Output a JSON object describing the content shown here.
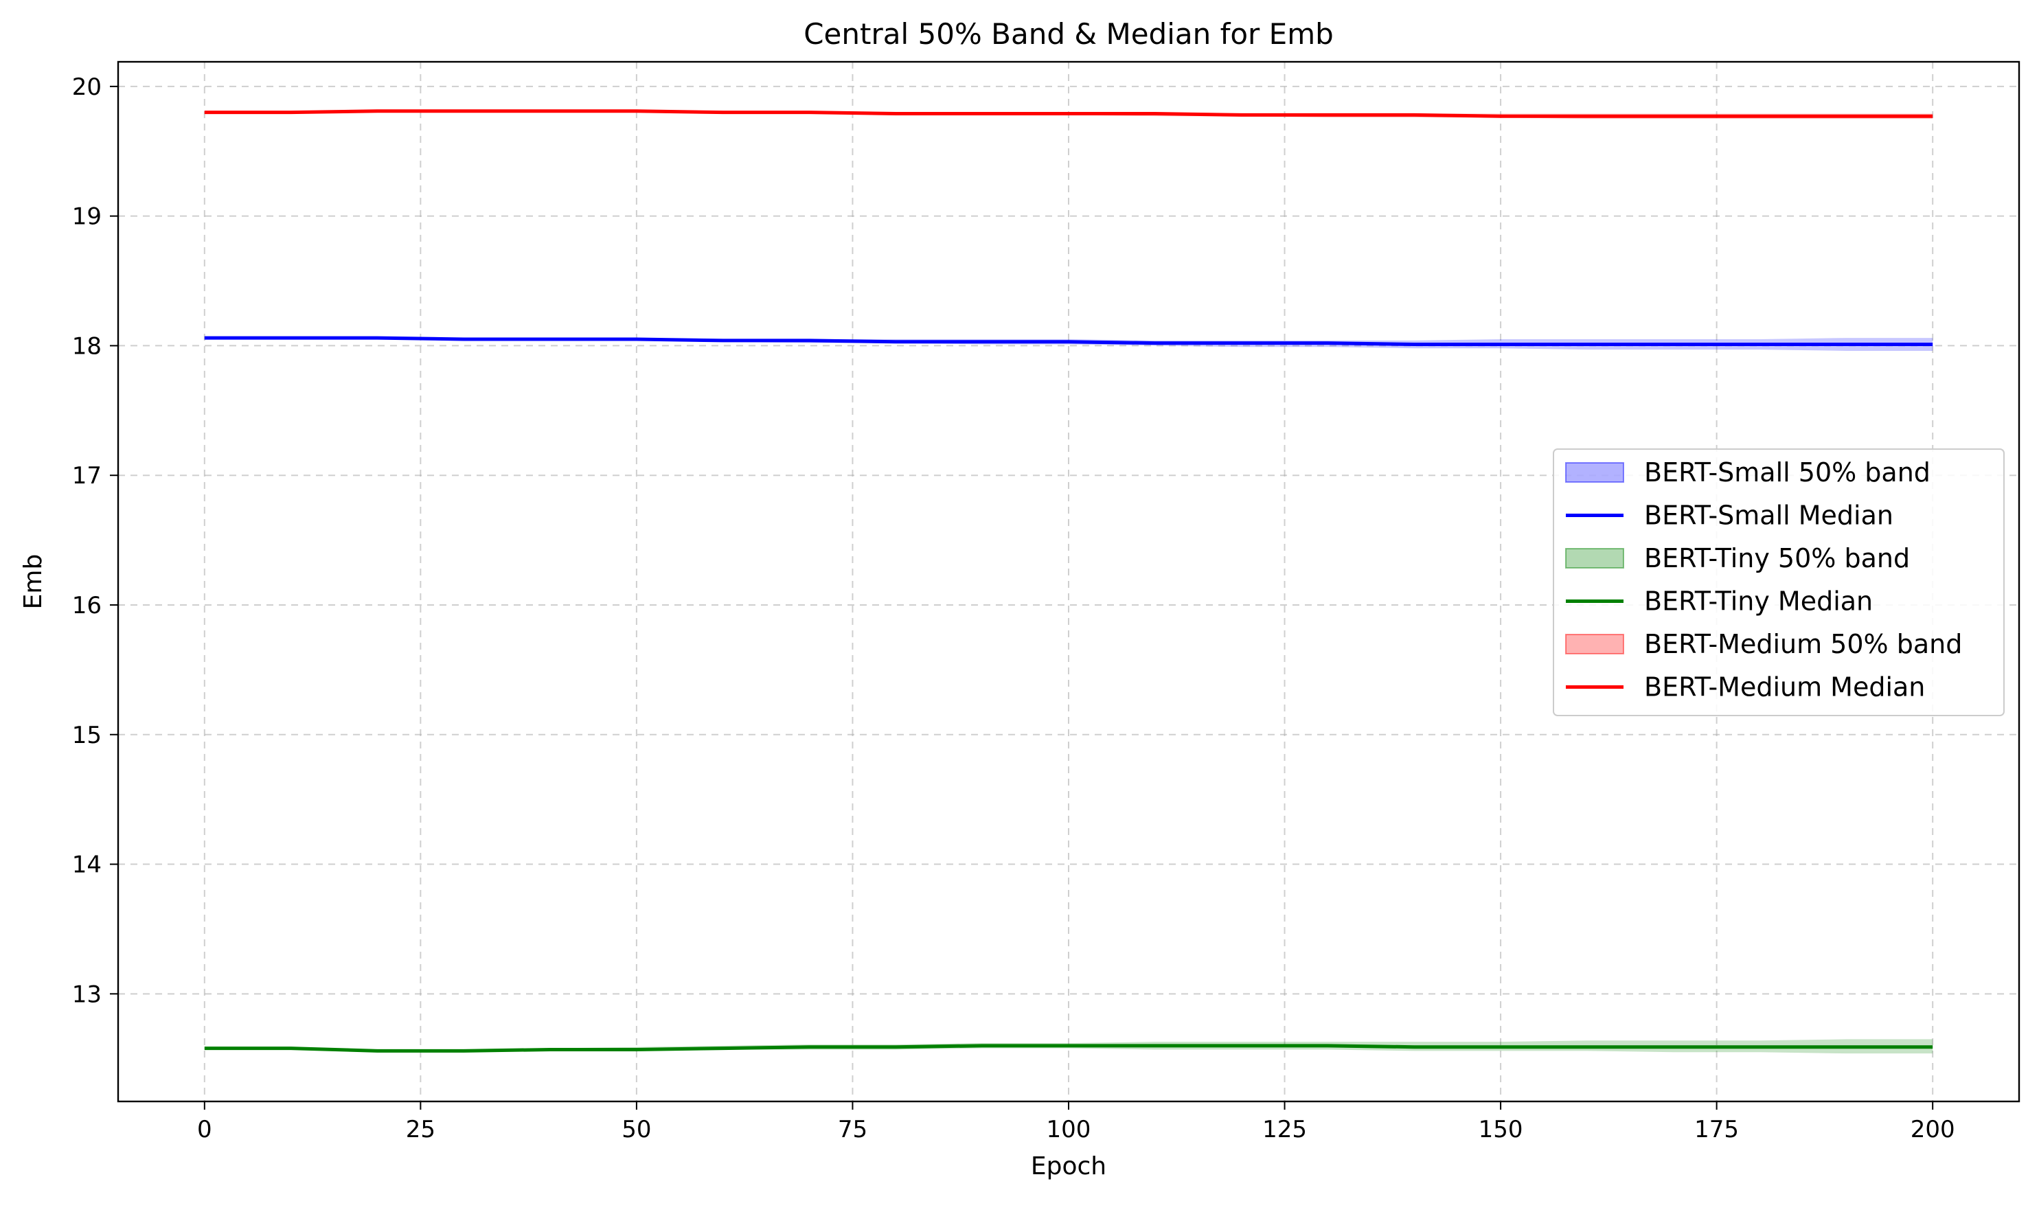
{
  "chart_data": {
    "type": "line",
    "title": "Central 50% Band & Median for Emb",
    "xlabel": "Epoch",
    "ylabel": "Emb",
    "xlim": [
      -10,
      210
    ],
    "ylim": [
      12.17,
      20.19
    ],
    "xticks": [
      0,
      25,
      50,
      75,
      100,
      125,
      150,
      175,
      200
    ],
    "yticks": [
      13,
      14,
      15,
      16,
      17,
      18,
      19,
      20
    ],
    "grid": true,
    "legend_position": "center-right",
    "x": [
      0,
      10,
      20,
      30,
      40,
      50,
      60,
      70,
      80,
      90,
      100,
      110,
      120,
      130,
      140,
      150,
      160,
      170,
      180,
      190,
      200
    ],
    "series": [
      {
        "name": "BERT-Small",
        "band_label": "BERT-Small 50% band",
        "median_label": "BERT-Small Median",
        "color": "#0000ff",
        "band_color": "#aaaaff",
        "median": [
          18.06,
          18.06,
          18.06,
          18.05,
          18.05,
          18.05,
          18.04,
          18.04,
          18.03,
          18.03,
          18.03,
          18.02,
          18.02,
          18.02,
          18.01,
          18.01,
          18.01,
          18.01,
          18.01,
          18.01,
          18.01
        ],
        "q25": [
          18.05,
          18.05,
          18.05,
          18.04,
          18.04,
          18.04,
          18.03,
          18.02,
          18.02,
          18.01,
          18.01,
          18.0,
          17.99,
          17.99,
          17.98,
          17.98,
          17.97,
          17.97,
          17.97,
          17.96,
          17.96
        ],
        "q75": [
          18.07,
          18.07,
          18.07,
          18.06,
          18.06,
          18.06,
          18.05,
          18.05,
          18.05,
          18.05,
          18.05,
          18.04,
          18.04,
          18.04,
          18.04,
          18.05,
          18.05,
          18.05,
          18.05,
          18.06,
          18.06
        ]
      },
      {
        "name": "BERT-Tiny",
        "band_label": "BERT-Tiny 50% band",
        "median_label": "BERT-Tiny Median",
        "color": "#008000",
        "band_color": "#b0d8b0",
        "median": [
          12.58,
          12.58,
          12.56,
          12.56,
          12.57,
          12.57,
          12.58,
          12.59,
          12.59,
          12.6,
          12.6,
          12.6,
          12.6,
          12.6,
          12.59,
          12.59,
          12.59,
          12.59,
          12.59,
          12.59,
          12.59
        ],
        "q25": [
          12.57,
          12.57,
          12.55,
          12.55,
          12.56,
          12.56,
          12.57,
          12.57,
          12.57,
          12.58,
          12.58,
          12.57,
          12.57,
          12.57,
          12.56,
          12.56,
          12.56,
          12.55,
          12.55,
          12.54,
          12.54
        ],
        "q75": [
          12.59,
          12.59,
          12.57,
          12.57,
          12.58,
          12.59,
          12.6,
          12.61,
          12.61,
          12.62,
          12.62,
          12.63,
          12.63,
          12.63,
          12.63,
          12.63,
          12.64,
          12.64,
          12.64,
          12.65,
          12.65
        ]
      },
      {
        "name": "BERT-Medium",
        "band_label": "BERT-Medium 50% band",
        "median_label": "BERT-Medium Median",
        "color": "#ff0000",
        "band_color": "#ffaaaa",
        "median": [
          19.8,
          19.8,
          19.81,
          19.81,
          19.81,
          19.81,
          19.8,
          19.8,
          19.79,
          19.79,
          19.79,
          19.79,
          19.78,
          19.78,
          19.78,
          19.77,
          19.77,
          19.77,
          19.77,
          19.77,
          19.77
        ],
        "q25": [
          19.79,
          19.79,
          19.8,
          19.8,
          19.8,
          19.8,
          19.79,
          19.79,
          19.78,
          19.78,
          19.78,
          19.77,
          19.77,
          19.76,
          19.76,
          19.76,
          19.75,
          19.75,
          19.75,
          19.75,
          19.75
        ],
        "q75": [
          19.81,
          19.81,
          19.82,
          19.82,
          19.82,
          19.82,
          19.81,
          19.81,
          19.8,
          19.8,
          19.8,
          19.8,
          19.79,
          19.79,
          19.79,
          19.79,
          19.79,
          19.79,
          19.79,
          19.79,
          19.79
        ]
      }
    ]
  }
}
